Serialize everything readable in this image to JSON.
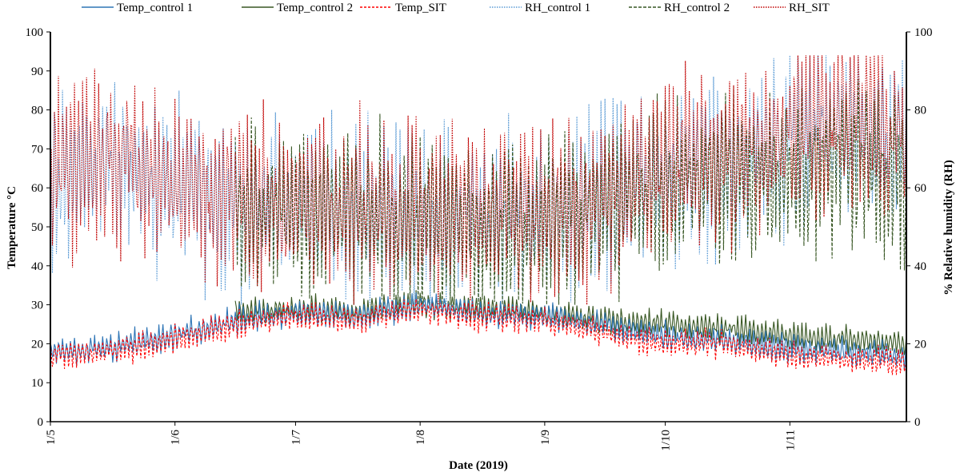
{
  "chart_data": {
    "type": "line",
    "title": "",
    "xlabel": "Date (2019)",
    "ylabel_left": "Temperature °C",
    "ylabel_right": "% Relative humidity (RH)",
    "x_range": [
      "2019-05-01",
      "2019-11-30"
    ],
    "x_ticks": [
      {
        "date": "2019-05-01",
        "label": "1/5"
      },
      {
        "date": "2019-06-01",
        "label": "1/6"
      },
      {
        "date": "2019-07-01",
        "label": "1/7"
      },
      {
        "date": "2019-08-01",
        "label": "1/8"
      },
      {
        "date": "2019-09-01",
        "label": "1/9"
      },
      {
        "date": "2019-10-01",
        "label": "1/10"
      },
      {
        "date": "2019-11-01",
        "label": "1/11"
      }
    ],
    "ylim_left": [
      0,
      100
    ],
    "ylim_right": [
      0,
      100
    ],
    "y_ticks_left": [
      "0",
      "10",
      "20",
      "30",
      "40",
      "50",
      "60",
      "70",
      "80",
      "90",
      "100"
    ],
    "y_ticks_right": [
      "0",
      "20",
      "40",
      "60",
      "80",
      "100"
    ],
    "grid": false,
    "legend_position": "top",
    "series": [
      {
        "name": "Temp_control 1",
        "axis": "left",
        "color": "#2e75b6",
        "dash": "solid",
        "x": [
          "2019-05-01",
          "2019-05-16",
          "2019-06-01",
          "2019-06-16",
          "2019-07-01",
          "2019-07-16",
          "2019-08-01",
          "2019-08-16",
          "2019-09-01",
          "2019-09-16",
          "2019-10-01",
          "2019-10-16",
          "2019-11-01",
          "2019-11-16",
          "2019-11-30"
        ],
        "values": [
          18,
          19,
          22,
          26,
          28,
          27,
          30,
          28,
          27,
          25,
          22,
          21,
          19,
          18,
          17
        ]
      },
      {
        "name": "Temp_control 2",
        "axis": "left",
        "color": "#385723",
        "dash": "solid",
        "x": [
          "2019-06-16",
          "2019-07-01",
          "2019-07-16",
          "2019-08-01",
          "2019-08-16",
          "2019-09-01",
          "2019-09-16",
          "2019-10-01",
          "2019-10-16",
          "2019-11-01",
          "2019-11-16",
          "2019-11-30"
        ],
        "values": [
          28,
          29,
          28,
          30,
          29,
          28,
          26,
          25,
          24,
          22,
          21,
          20
        ]
      },
      {
        "name": "Temp_SIT",
        "axis": "left",
        "color": "#ff0000",
        "dash": "short-dash",
        "x": [
          "2019-05-01",
          "2019-05-16",
          "2019-06-01",
          "2019-06-16",
          "2019-07-01",
          "2019-07-16",
          "2019-08-01",
          "2019-08-16",
          "2019-09-01",
          "2019-09-16",
          "2019-10-01",
          "2019-10-16",
          "2019-11-01",
          "2019-11-16",
          "2019-11-30"
        ],
        "values": [
          17,
          18,
          21,
          25,
          27,
          26,
          29,
          27,
          26,
          23,
          20,
          20,
          17,
          16,
          15
        ]
      },
      {
        "name": "RH_control 1",
        "axis": "right",
        "color": "#5b9bd5",
        "dash": "dotted",
        "x": [
          "2019-05-01",
          "2019-05-16",
          "2019-06-01",
          "2019-06-16",
          "2019-07-01",
          "2019-07-16",
          "2019-08-01",
          "2019-08-16",
          "2019-09-01",
          "2019-09-16",
          "2019-10-01",
          "2019-10-16",
          "2019-11-01",
          "2019-11-16",
          "2019-11-30"
        ],
        "values": [
          62,
          68,
          60,
          56,
          55,
          54,
          53,
          54,
          52,
          56,
          64,
          66,
          73,
          76,
          72
        ]
      },
      {
        "name": "RH_control 2",
        "axis": "right",
        "color": "#375623",
        "dash": "dashed",
        "x": [
          "2019-06-16",
          "2019-07-01",
          "2019-07-16",
          "2019-08-01",
          "2019-08-16",
          "2019-09-01",
          "2019-09-16",
          "2019-10-01",
          "2019-10-16",
          "2019-11-01",
          "2019-11-16",
          "2019-11-30"
        ],
        "values": [
          52,
          54,
          53,
          50,
          51,
          49,
          54,
          60,
          62,
          64,
          66,
          62
        ]
      },
      {
        "name": "RH_SIT",
        "axis": "right",
        "color": "#c00000",
        "dash": "dotted",
        "x": [
          "2019-05-01",
          "2019-05-16",
          "2019-06-01",
          "2019-06-16",
          "2019-07-01",
          "2019-07-16",
          "2019-08-01",
          "2019-08-16",
          "2019-09-01",
          "2019-09-16",
          "2019-10-01",
          "2019-10-16",
          "2019-11-01",
          "2019-11-16",
          "2019-11-30"
        ],
        "values": [
          63,
          69,
          61,
          57,
          56,
          55,
          54,
          55,
          53,
          58,
          66,
          68,
          75,
          78,
          74
        ]
      }
    ]
  }
}
